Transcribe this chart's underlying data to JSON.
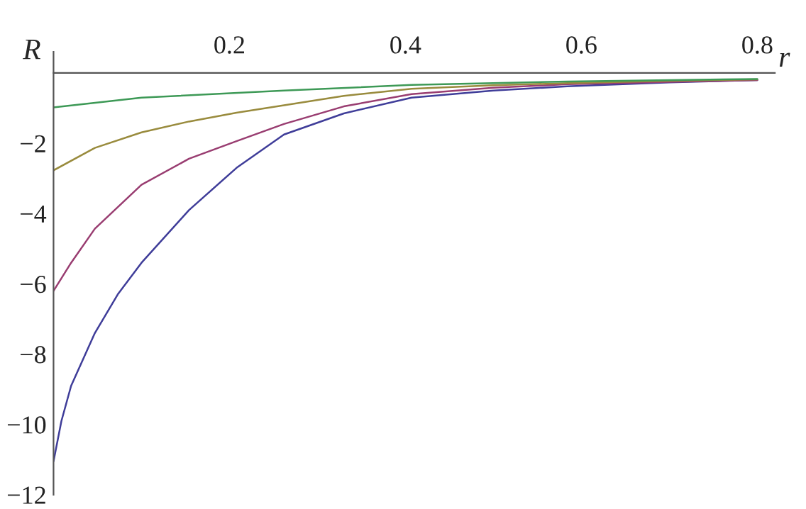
{
  "chart_data": {
    "type": "line",
    "xlabel": "r",
    "ylabel": "R",
    "xlim": [
      0,
      0.82
    ],
    "ylim": [
      -12,
      0.6
    ],
    "xticks": [
      0.2,
      0.4,
      0.6,
      0.8
    ],
    "yticks": [
      {
        "value": -12,
        "label": "−12"
      },
      {
        "value": -10,
        "label": "−10"
      },
      {
        "value": -8,
        "label": "−8"
      },
      {
        "value": -6,
        "label": "−6"
      },
      {
        "value": -4,
        "label": "−4"
      },
      {
        "value": -2,
        "label": "−2"
      }
    ],
    "grid": false,
    "legend": false,
    "marker": "none",
    "line_style": "solid",
    "series": [
      {
        "color": "#3f3d99",
        "x": [
          0,
          0.009,
          0.02,
          0.047,
          0.073,
          0.1,
          0.154,
          0.208,
          0.262,
          0.33,
          0.407,
          0.5,
          0.584,
          0.7,
          0.8
        ],
        "values": [
          -11.05,
          -9.9,
          -8.9,
          -7.4,
          -6.3,
          -5.4,
          -3.9,
          -2.7,
          -1.75,
          -1.15,
          -0.7,
          -0.5,
          -0.38,
          -0.27,
          -0.2
        ]
      },
      {
        "color": "#993d71",
        "x": [
          0,
          0.02,
          0.047,
          0.1,
          0.154,
          0.208,
          0.262,
          0.33,
          0.407,
          0.5,
          0.584,
          0.7,
          0.8
        ],
        "values": [
          -6.2,
          -5.4,
          -4.43,
          -3.18,
          -2.44,
          -1.94,
          -1.45,
          -0.95,
          -0.6,
          -0.42,
          -0.32,
          -0.25,
          -0.2
        ]
      },
      {
        "color": "#998b3d",
        "x": [
          0,
          0.047,
          0.1,
          0.154,
          0.208,
          0.262,
          0.33,
          0.407,
          0.5,
          0.584,
          0.7,
          0.8
        ],
        "values": [
          -2.77,
          -2.13,
          -1.69,
          -1.38,
          -1.13,
          -0.92,
          -0.65,
          -0.45,
          -0.35,
          -0.29,
          -0.22,
          -0.18
        ]
      },
      {
        "color": "#3d9956",
        "x": [
          0,
          0.1,
          0.262,
          0.407,
          0.584,
          0.8
        ],
        "values": [
          -0.98,
          -0.7,
          -0.5,
          -0.34,
          -0.24,
          -0.17
        ]
      }
    ]
  }
}
